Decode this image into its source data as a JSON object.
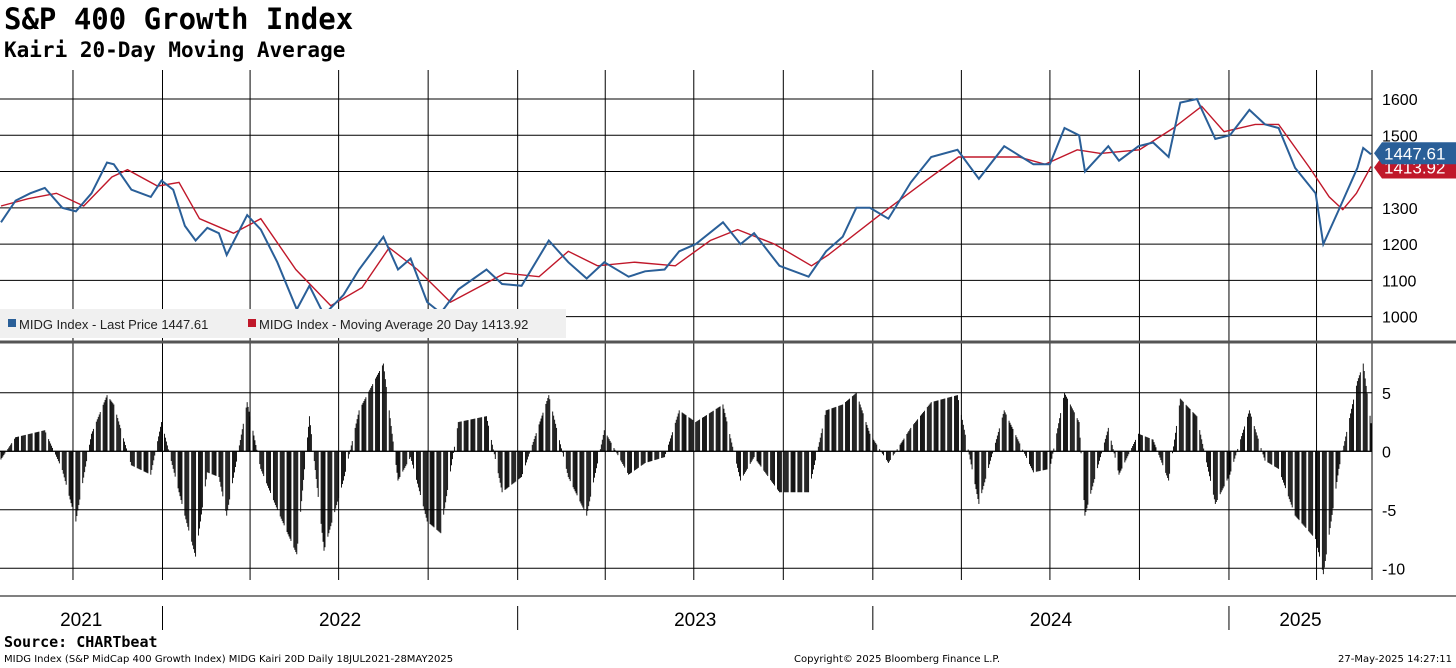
{
  "header": {
    "title": "S&P 400 Growth Index",
    "subtitle": "Kairi 20-Day Moving Average"
  },
  "footer": {
    "source": "Source: CHARTbeat",
    "description": "MIDG Index (S&P MidCap 400 Growth Index) MIDG Kairi 20D  Daily 18JUL2021-28MAY2025",
    "copyright": "Copyright© 2025 Bloomberg Finance L.P.",
    "timestamp": "27-May-2025 14:27:11"
  },
  "colors": {
    "price": "#2a5f98",
    "moving_average": "#c0182a",
    "kairi_bars": "#000000",
    "grid": "#000000"
  },
  "chart_data": [
    {
      "type": "line",
      "ylim": [
        930,
        1680
      ],
      "yticks": [
        1000,
        1100,
        1200,
        1300,
        1400,
        1500,
        1600
      ],
      "grid": true,
      "legend_position": "bottom-left",
      "x_periods": [
        "2021",
        "2022",
        "2023",
        "2024",
        "2025"
      ],
      "series": [
        {
          "name": "MIDG Index - Last Price",
          "last_value": 1447.61,
          "last_label": "1447.61",
          "legend": "MIDG Index - Last Price 1447.61",
          "points": [
            [
              "2021-07-19",
              1260
            ],
            [
              "2021-08-03",
              1320
            ],
            [
              "2021-08-18",
              1340
            ],
            [
              "2021-09-02",
              1355
            ],
            [
              "2021-09-20",
              1300
            ],
            [
              "2021-10-04",
              1290
            ],
            [
              "2021-10-20",
              1340
            ],
            [
              "2021-11-05",
              1425
            ],
            [
              "2021-11-12",
              1420
            ],
            [
              "2021-11-30",
              1350
            ],
            [
              "2021-12-20",
              1330
            ],
            [
              "2021-12-31",
              1375
            ],
            [
              "2022-01-12",
              1350
            ],
            [
              "2022-01-24",
              1250
            ],
            [
              "2022-02-04",
              1210
            ],
            [
              "2022-02-16",
              1245
            ],
            [
              "2022-02-28",
              1230
            ],
            [
              "2022-03-08",
              1170
            ],
            [
              "2022-03-29",
              1280
            ],
            [
              "2022-04-12",
              1240
            ],
            [
              "2022-04-29",
              1150
            ],
            [
              "2022-05-19",
              1020
            ],
            [
              "2022-06-01",
              1085
            ],
            [
              "2022-06-16",
              1005
            ],
            [
              "2022-07-06",
              1060
            ],
            [
              "2022-07-22",
              1130
            ],
            [
              "2022-08-16",
              1220
            ],
            [
              "2022-08-31",
              1130
            ],
            [
              "2022-09-13",
              1160
            ],
            [
              "2022-09-30",
              1040
            ],
            [
              "2022-10-14",
              1010
            ],
            [
              "2022-11-01",
              1075
            ],
            [
              "2022-11-30",
              1130
            ],
            [
              "2022-12-16",
              1090
            ],
            [
              "2023-01-05",
              1085
            ],
            [
              "2023-02-02",
              1210
            ],
            [
              "2023-02-22",
              1150
            ],
            [
              "2023-03-13",
              1105
            ],
            [
              "2023-03-31",
              1150
            ],
            [
              "2023-04-25",
              1110
            ],
            [
              "2023-05-12",
              1125
            ],
            [
              "2023-06-01",
              1130
            ],
            [
              "2023-06-16",
              1180
            ],
            [
              "2023-07-03",
              1200
            ],
            [
              "2023-07-31",
              1260
            ],
            [
              "2023-08-18",
              1200
            ],
            [
              "2023-09-01",
              1230
            ],
            [
              "2023-09-27",
              1140
            ],
            [
              "2023-10-27",
              1110
            ],
            [
              "2023-11-14",
              1180
            ],
            [
              "2023-12-01",
              1220
            ],
            [
              "2023-12-15",
              1300
            ],
            [
              "2023-12-29",
              1300
            ],
            [
              "2024-01-17",
              1270
            ],
            [
              "2024-02-09",
              1370
            ],
            [
              "2024-03-01",
              1440
            ],
            [
              "2024-03-28",
              1460
            ],
            [
              "2024-04-19",
              1380
            ],
            [
              "2024-05-15",
              1470
            ],
            [
              "2024-06-14",
              1420
            ],
            [
              "2024-07-01",
              1420
            ],
            [
              "2024-07-16",
              1520
            ],
            [
              "2024-07-31",
              1500
            ],
            [
              "2024-08-06",
              1400
            ],
            [
              "2024-08-30",
              1470
            ],
            [
              "2024-09-10",
              1430
            ],
            [
              "2024-09-30",
              1470
            ],
            [
              "2024-10-15",
              1480
            ],
            [
              "2024-10-31",
              1440
            ],
            [
              "2024-11-12",
              1590
            ],
            [
              "2024-11-29",
              1600
            ],
            [
              "2024-12-18",
              1490
            ],
            [
              "2025-01-02",
              1500
            ],
            [
              "2025-01-22",
              1570
            ],
            [
              "2025-02-07",
              1530
            ],
            [
              "2025-02-21",
              1520
            ],
            [
              "2025-03-10",
              1410
            ],
            [
              "2025-03-31",
              1340
            ],
            [
              "2025-04-08",
              1200
            ],
            [
              "2025-04-24",
              1295
            ],
            [
              "2025-05-13",
              1410
            ],
            [
              "2025-05-19",
              1465
            ],
            [
              "2025-05-27",
              1447.61
            ]
          ]
        },
        {
          "name": "MIDG Index - Moving Average 20 Day",
          "last_value": 1413.92,
          "last_label": "1413.92",
          "legend": "MIDG Index - Moving Average 20 Day 1413.92",
          "points": [
            [
              "2021-07-19",
              1305
            ],
            [
              "2021-08-16",
              1325
            ],
            [
              "2021-09-14",
              1340
            ],
            [
              "2021-10-12",
              1305
            ],
            [
              "2021-11-10",
              1385
            ],
            [
              "2021-11-26",
              1405
            ],
            [
              "2021-12-27",
              1360
            ],
            [
              "2022-01-18",
              1370
            ],
            [
              "2022-02-08",
              1270
            ],
            [
              "2022-03-15",
              1230
            ],
            [
              "2022-04-12",
              1270
            ],
            [
              "2022-05-18",
              1130
            ],
            [
              "2022-06-23",
              1030
            ],
            [
              "2022-07-25",
              1080
            ],
            [
              "2022-08-22",
              1190
            ],
            [
              "2022-09-20",
              1130
            ],
            [
              "2022-10-24",
              1040
            ],
            [
              "2022-11-21",
              1080
            ],
            [
              "2022-12-19",
              1120
            ],
            [
              "2023-01-23",
              1110
            ],
            [
              "2023-02-22",
              1180
            ],
            [
              "2023-03-24",
              1140
            ],
            [
              "2023-05-01",
              1150
            ],
            [
              "2023-06-12",
              1140
            ],
            [
              "2023-07-18",
              1210
            ],
            [
              "2023-08-15",
              1240
            ],
            [
              "2023-09-22",
              1200
            ],
            [
              "2023-10-30",
              1140
            ],
            [
              "2023-11-16",
              1170
            ],
            [
              "2024-01-08",
              1280
            ],
            [
              "2024-02-27",
              1380
            ],
            [
              "2024-03-29",
              1440
            ],
            [
              "2024-05-01",
              1440
            ],
            [
              "2024-05-30",
              1440
            ],
            [
              "2024-06-26",
              1420
            ],
            [
              "2024-07-29",
              1460
            ],
            [
              "2024-08-22",
              1450
            ],
            [
              "2024-10-01",
              1460
            ],
            [
              "2024-11-05",
              1520
            ],
            [
              "2024-12-04",
              1580
            ],
            [
              "2024-12-27",
              1510
            ],
            [
              "2025-01-28",
              1530
            ],
            [
              "2025-02-21",
              1530
            ],
            [
              "2025-03-25",
              1410
            ],
            [
              "2025-04-14",
              1330
            ],
            [
              "2025-04-28",
              1295
            ],
            [
              "2025-05-12",
              1340
            ],
            [
              "2025-05-27",
              1413.92
            ]
          ]
        }
      ]
    },
    {
      "type": "bar",
      "ylim": [
        -11,
        9
      ],
      "yticks": [
        5,
        0,
        -5,
        -10
      ],
      "ytick_labels": [
        "5",
        "0",
        "-5",
        "-10"
      ],
      "grid": true,
      "series": [
        {
          "name": "MIDG Kairi 20D",
          "values": [
            [
              "2021-07-19",
              -0.7
            ],
            [
              "2021-08-03",
              1.2
            ],
            [
              "2021-08-18",
              1.5
            ],
            [
              "2021-09-02",
              1.8
            ],
            [
              "2021-09-20",
              -1.6
            ],
            [
              "2021-10-04",
              -6
            ],
            [
              "2021-10-20",
              1.5
            ],
            [
              "2021-11-05",
              4.8
            ],
            [
              "2021-11-12",
              4
            ],
            [
              "2021-11-30",
              -1.2
            ],
            [
              "2021-12-20",
              -2
            ],
            [
              "2021-12-31",
              2.5
            ],
            [
              "2022-01-12",
              -1.5
            ],
            [
              "2022-01-24",
              -5.5
            ],
            [
              "2022-02-04",
              -9
            ],
            [
              "2022-02-16",
              -1.8
            ],
            [
              "2022-02-28",
              -2.2
            ],
            [
              "2022-03-08",
              -5.5
            ],
            [
              "2022-03-29",
              4.2
            ],
            [
              "2022-04-12",
              -1.5
            ],
            [
              "2022-04-29",
              -5
            ],
            [
              "2022-05-19",
              -8.8
            ],
            [
              "2022-06-01",
              3
            ],
            [
              "2022-06-16",
              -8.5
            ],
            [
              "2022-07-06",
              -2.5
            ],
            [
              "2022-07-22",
              3.5
            ],
            [
              "2022-08-16",
              7.5
            ],
            [
              "2022-08-31",
              -2.5
            ],
            [
              "2022-09-13",
              -0.5
            ],
            [
              "2022-09-30",
              -6
            ],
            [
              "2022-10-14",
              -7
            ],
            [
              "2022-11-01",
              2.5
            ],
            [
              "2022-11-30",
              3
            ],
            [
              "2022-12-16",
              -3.5
            ],
            [
              "2023-01-05",
              -2.2
            ],
            [
              "2023-02-02",
              4.8
            ],
            [
              "2023-02-22",
              -2.2
            ],
            [
              "2023-03-13",
              -5.5
            ],
            [
              "2023-03-31",
              1.8
            ],
            [
              "2023-04-25",
              -2
            ],
            [
              "2023-05-12",
              -1
            ],
            [
              "2023-06-01",
              -0.5
            ],
            [
              "2023-06-16",
              3.5
            ],
            [
              "2023-07-03",
              2.5
            ],
            [
              "2023-07-31",
              4
            ],
            [
              "2023-08-18",
              -2.5
            ],
            [
              "2023-09-01",
              -0.5
            ],
            [
              "2023-09-27",
              -3.5
            ],
            [
              "2023-10-27",
              -3.5
            ],
            [
              "2023-11-14",
              3.5
            ],
            [
              "2023-12-01",
              4
            ],
            [
              "2023-12-15",
              5
            ],
            [
              "2023-12-29",
              1.5
            ],
            [
              "2024-01-17",
              -1
            ],
            [
              "2024-02-09",
              2
            ],
            [
              "2024-03-01",
              4.2
            ],
            [
              "2024-03-28",
              4.8
            ],
            [
              "2024-04-19",
              -4.5
            ],
            [
              "2024-05-15",
              3.5
            ],
            [
              "2024-06-14",
              -1.8
            ],
            [
              "2024-07-01",
              -1.5
            ],
            [
              "2024-07-16",
              5
            ],
            [
              "2024-07-31",
              2.5
            ],
            [
              "2024-08-06",
              -5.5
            ],
            [
              "2024-08-30",
              2
            ],
            [
              "2024-09-10",
              -2
            ],
            [
              "2024-09-30",
              1.5
            ],
            [
              "2024-10-15",
              1
            ],
            [
              "2024-10-31",
              -2.5
            ],
            [
              "2024-11-12",
              4.5
            ],
            [
              "2024-11-29",
              3
            ],
            [
              "2024-12-18",
              -4.5
            ],
            [
              "2025-01-02",
              -2
            ],
            [
              "2025-01-22",
              3.5
            ],
            [
              "2025-02-07",
              -0.8
            ],
            [
              "2025-02-21",
              -1.5
            ],
            [
              "2025-03-10",
              -5.5
            ],
            [
              "2025-03-31",
              -7.5
            ],
            [
              "2025-04-08",
              -10.5
            ],
            [
              "2025-04-24",
              -1.5
            ],
            [
              "2025-05-13",
              6
            ],
            [
              "2025-05-19",
              7.5
            ],
            [
              "2025-05-27",
              2.4
            ]
          ]
        }
      ]
    }
  ]
}
